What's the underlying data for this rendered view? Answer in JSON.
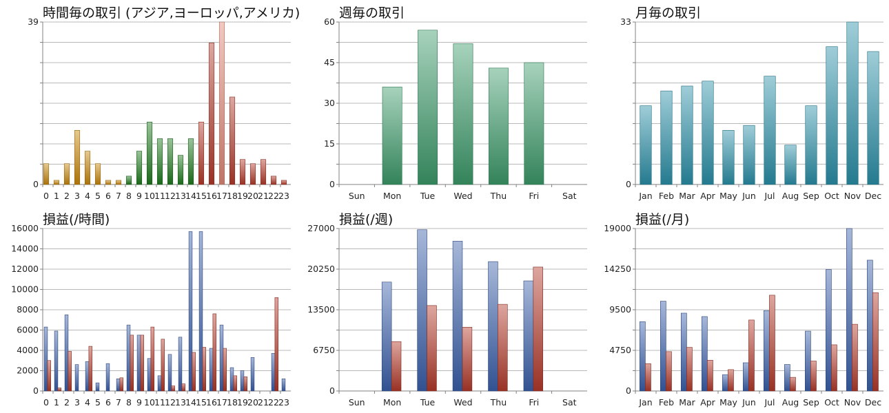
{
  "chart_data": [
    {
      "id": "hourly-trades",
      "type": "bar",
      "title": "時間毎の取引 (アジア,ヨーロッパ,アメリカ)",
      "categories": [
        "0",
        "1",
        "2",
        "3",
        "4",
        "5",
        "6",
        "7",
        "8",
        "9",
        "10",
        "11",
        "12",
        "13",
        "14",
        "15",
        "16",
        "17",
        "18",
        "19",
        "20",
        "21",
        "22",
        "23"
      ],
      "values": [
        5,
        1,
        5,
        13,
        8,
        5,
        1,
        1,
        2,
        8,
        15,
        11,
        11,
        7,
        11,
        15,
        34,
        39,
        21,
        6,
        5,
        6,
        2,
        1
      ],
      "bar_colors": [
        "#c8860a",
        "#c8860a",
        "#c8860a",
        "#c8860a",
        "#c8860a",
        "#c8860a",
        "#c8860a",
        "#c8860a",
        "#1e7a1e",
        "#1e7a1e",
        "#1e7a1e",
        "#1e7a1e",
        "#1e7a1e",
        "#1e7a1e",
        "#1e7a1e",
        "#b33a2a",
        "#b33a2a",
        "#e08a78",
        "#b33a2a",
        "#b33a2a",
        "#b33a2a",
        "#b33a2a",
        "#b33a2a",
        "#b33a2a"
      ],
      "ylim": [
        0,
        39
      ],
      "yticks": [
        "0",
        "39"
      ],
      "grid": "horizontal"
    },
    {
      "id": "weekly-trades",
      "type": "bar",
      "title": "週毎の取引",
      "categories": [
        "Sun",
        "Mon",
        "Tue",
        "Wed",
        "Thu",
        "Fri",
        "Sat"
      ],
      "values": [
        0,
        36,
        57,
        52,
        43,
        45,
        0
      ],
      "color": "#3c9a6a",
      "ylim": [
        0,
        60
      ],
      "yticks": [
        "0",
        "15",
        "30",
        "45",
        "60"
      ],
      "grid": "horizontal"
    },
    {
      "id": "monthly-trades",
      "type": "bar",
      "title": "月毎の取引",
      "categories": [
        "Jan",
        "Feb",
        "Mar",
        "Apr",
        "May",
        "Jun",
        "Jul",
        "Aug",
        "Sep",
        "Oct",
        "Nov",
        "Dec"
      ],
      "values": [
        16,
        19,
        20,
        21,
        11,
        12,
        22,
        8,
        16,
        28,
        33,
        27
      ],
      "color": "#2a8fa8",
      "ylim": [
        0,
        33
      ],
      "yticks": [
        "0",
        "33"
      ],
      "grid": "horizontal"
    },
    {
      "id": "hourly-pl",
      "type": "bar",
      "title": "損益(/時間)",
      "categories": [
        "0",
        "1",
        "2",
        "3",
        "4",
        "5",
        "6",
        "7",
        "8",
        "9",
        "10",
        "11",
        "12",
        "13",
        "14",
        "15",
        "16",
        "17",
        "18",
        "19",
        "20",
        "21",
        "22",
        "23"
      ],
      "series": [
        {
          "values": [
            6300,
            5900,
            7500,
            2600,
            2900,
            800,
            2700,
            1200,
            6500,
            5500,
            3200,
            1500,
            3600,
            5300,
            15700,
            15700,
            4200,
            6500,
            2300,
            2000,
            3300,
            0,
            3700,
            1200
          ],
          "color": "#3a5faa"
        },
        {
          "values": [
            3000,
            300,
            3900,
            0,
            4400,
            0,
            0,
            1300,
            5500,
            5500,
            6300,
            5100,
            500,
            700,
            3800,
            4300,
            7600,
            4200,
            1500,
            1400,
            0,
            0,
            9200,
            0
          ]
        }
      ],
      "series_colors": [
        "#3a5faa",
        "#b33a2a"
      ],
      "ylim": [
        0,
        16000
      ],
      "yticks": [
        "0",
        "2000",
        "4000",
        "6000",
        "8000",
        "10000",
        "12000",
        "14000",
        "16000"
      ],
      "grid": "horizontal"
    },
    {
      "id": "weekly-pl",
      "type": "bar",
      "title": "損益(/週)",
      "categories": [
        "Sun",
        "Mon",
        "Tue",
        "Wed",
        "Thu",
        "Fri",
        "Sat"
      ],
      "series": [
        {
          "values": [
            0,
            18100,
            26800,
            24900,
            21500,
            18300,
            0
          ]
        },
        {
          "values": [
            0,
            8200,
            14200,
            10600,
            14400,
            20600,
            0
          ]
        }
      ],
      "series_colors": [
        "#3a5faa",
        "#b33a2a"
      ],
      "ylim": [
        0,
        27000
      ],
      "yticks": [
        "0",
        "6750",
        "13500",
        "20250",
        "27000"
      ],
      "grid": "horizontal"
    },
    {
      "id": "monthly-pl",
      "type": "bar",
      "title": "損益(/月)",
      "categories": [
        "Jan",
        "Feb",
        "Mar",
        "Apr",
        "May",
        "Jun",
        "Jul",
        "Aug",
        "Sep",
        "Oct",
        "Nov",
        "Dec"
      ],
      "series": [
        {
          "values": [
            8100,
            10500,
            9100,
            8700,
            1900,
            3300,
            9400,
            3100,
            7000,
            14200,
            19000,
            15300
          ]
        },
        {
          "values": [
            3200,
            4600,
            5100,
            3600,
            2500,
            8300,
            11200,
            1600,
            3500,
            5400,
            7800,
            11500
          ]
        }
      ],
      "series_colors": [
        "#3a5faa",
        "#b33a2a"
      ],
      "ylim": [
        0,
        19000
      ],
      "yticks": [
        "0",
        "4750",
        "9500",
        "14250",
        "19000"
      ],
      "grid": "horizontal"
    }
  ]
}
